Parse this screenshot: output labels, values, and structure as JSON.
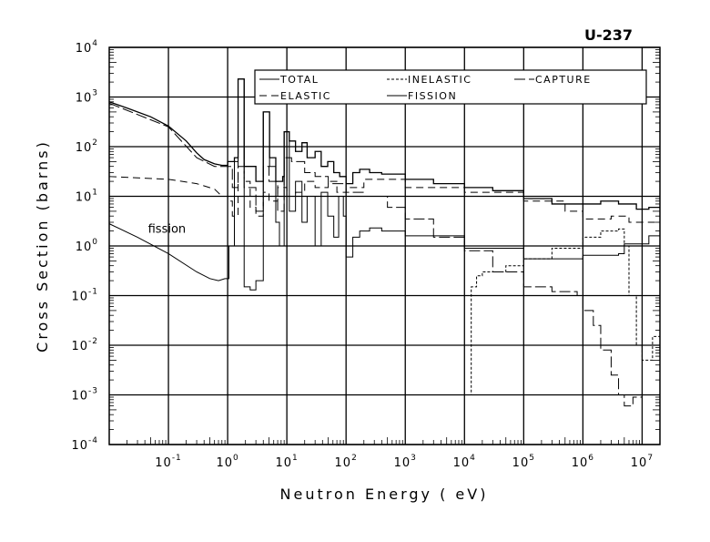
{
  "chart_data": {
    "type": "line",
    "title": "U-237",
    "xlabel": "Neutron Energy ( eV)",
    "ylabel": "Cross Section (barns)",
    "x_scale": "log",
    "y_scale": "log",
    "xlim": [
      0.01,
      20000000
    ],
    "ylim": [
      0.0001,
      10000
    ],
    "grid": true,
    "legend_position": "top-right",
    "x_ticks": [
      {
        "base": "10",
        "exp": "-1",
        "v": 0.1
      },
      {
        "base": "10",
        "exp": "0",
        "v": 1
      },
      {
        "base": "10",
        "exp": "1",
        "v": 10
      },
      {
        "base": "10",
        "exp": "2",
        "v": 100
      },
      {
        "base": "10",
        "exp": "3",
        "v": 1000
      },
      {
        "base": "10",
        "exp": "4",
        "v": 10000
      },
      {
        "base": "10",
        "exp": "5",
        "v": 100000
      },
      {
        "base": "10",
        "exp": "6",
        "v": 1000000
      },
      {
        "base": "10",
        "exp": "7",
        "v": 10000000
      }
    ],
    "y_ticks": [
      {
        "base": "10",
        "exp": "4",
        "v": 10000
      },
      {
        "base": "10",
        "exp": "3",
        "v": 1000
      },
      {
        "base": "10",
        "exp": "2",
        "v": 100
      },
      {
        "base": "10",
        "exp": "1",
        "v": 10
      },
      {
        "base": "10",
        "exp": "0",
        "v": 1
      },
      {
        "base": "10",
        "exp": "-1",
        "v": 0.1
      },
      {
        "base": "10",
        "exp": "-2",
        "v": 0.01
      },
      {
        "base": "10",
        "exp": "-3",
        "v": 0.001
      },
      {
        "base": "10",
        "exp": "-4",
        "v": 0.0001
      }
    ],
    "annotations": [
      {
        "text": "fission",
        "x": 0.06,
        "y": 1.5
      }
    ],
    "series": [
      {
        "name": "TOTAL",
        "style": "solid",
        "points": [
          [
            0.01,
            800
          ],
          [
            0.02,
            600
          ],
          [
            0.05,
            400
          ],
          [
            0.1,
            260
          ],
          [
            0.2,
            130
          ],
          [
            0.3,
            75
          ],
          [
            0.4,
            55
          ],
          [
            0.6,
            45
          ],
          [
            0.8,
            42
          ],
          [
            1.0,
            50
          ],
          [
            1.3,
            60
          ],
          [
            1.5,
            2300
          ],
          [
            1.9,
            40
          ],
          [
            3.0,
            20
          ],
          [
            4.0,
            500
          ],
          [
            5.1,
            60
          ],
          [
            6.5,
            20
          ],
          [
            8.5,
            25
          ],
          [
            9,
            200
          ],
          [
            11,
            130
          ],
          [
            14,
            80
          ],
          [
            18,
            120
          ],
          [
            22,
            60
          ],
          [
            30,
            80
          ],
          [
            38,
            40
          ],
          [
            49,
            50
          ],
          [
            62,
            30
          ],
          [
            78,
            25
          ],
          [
            100,
            18
          ],
          [
            130,
            30
          ],
          [
            170,
            35
          ],
          [
            250,
            30
          ],
          [
            400,
            28
          ],
          [
            1000,
            22
          ],
          [
            3000,
            18
          ],
          [
            10000,
            15
          ],
          [
            30000,
            13
          ],
          [
            100000,
            9
          ],
          [
            300000,
            7
          ],
          [
            1000000,
            7
          ],
          [
            2000000,
            8
          ],
          [
            4000000,
            7
          ],
          [
            8000000,
            5.5
          ],
          [
            13000000,
            6
          ],
          [
            20000000,
            6
          ]
        ]
      },
      {
        "name": "INELASTIC",
        "style": "dotted",
        "points": [
          [
            12000,
            0.001
          ],
          [
            13000,
            0.15
          ],
          [
            16000,
            0.25
          ],
          [
            20000,
            0.3
          ],
          [
            50000,
            0.4
          ],
          [
            100000,
            0.55
          ],
          [
            300000,
            0.9
          ],
          [
            1000000,
            1.5
          ],
          [
            2000000,
            2
          ],
          [
            4000000,
            2.2
          ],
          [
            5000000,
            1
          ],
          [
            6000000,
            0.1
          ],
          [
            8000000,
            0.01
          ],
          [
            10000000,
            0.005
          ],
          [
            15000000,
            0.015
          ],
          [
            20000000,
            0.01
          ]
        ]
      },
      {
        "name": "CAPTURE",
        "style": "longdash",
        "points": [
          [
            0.01,
            750
          ],
          [
            0.1,
            250
          ],
          [
            0.3,
            60
          ],
          [
            0.6,
            40
          ],
          [
            0.9,
            40
          ],
          [
            1.2,
            15
          ],
          [
            1.5,
            100
          ],
          [
            1.9,
            15
          ],
          [
            3,
            5
          ],
          [
            4,
            40
          ],
          [
            5,
            20
          ],
          [
            7,
            5
          ],
          [
            9,
            60
          ],
          [
            12,
            50
          ],
          [
            20,
            30
          ],
          [
            30,
            25
          ],
          [
            50,
            18
          ],
          [
            100,
            12
          ],
          [
            200,
            10
          ],
          [
            500,
            6
          ],
          [
            1000,
            3.5
          ],
          [
            3000,
            1.5
          ],
          [
            10000,
            0.8
          ],
          [
            30000,
            0.3
          ],
          [
            100000,
            0.15
          ],
          [
            300000,
            0.12
          ],
          [
            800000,
            0.1
          ],
          [
            1000000,
            0.05
          ],
          [
            1500000,
            0.025
          ],
          [
            2000000,
            0.008
          ],
          [
            3000000,
            0.0025
          ],
          [
            4000000,
            0.001
          ],
          [
            5000000,
            0.0006
          ],
          [
            7000000,
            0.0009
          ],
          [
            10000000,
            0.001
          ],
          [
            20000000,
            0.001
          ]
        ]
      },
      {
        "name": "ELASTIC",
        "style": "dashed",
        "points": [
          [
            0.01,
            25
          ],
          [
            0.1,
            22
          ],
          [
            0.3,
            18
          ],
          [
            0.6,
            14
          ],
          [
            0.8,
            10
          ],
          [
            1,
            8
          ],
          [
            1.2,
            4
          ],
          [
            1.5,
            40
          ],
          [
            1.9,
            20
          ],
          [
            2.4,
            6
          ],
          [
            3,
            4
          ],
          [
            4,
            12
          ],
          [
            5,
            8
          ],
          [
            7,
            15
          ],
          [
            10,
            10
          ],
          [
            14,
            12
          ],
          [
            20,
            20
          ],
          [
            30,
            15
          ],
          [
            50,
            20
          ],
          [
            70,
            12
          ],
          [
            100,
            15
          ],
          [
            200,
            22
          ],
          [
            1000,
            15
          ],
          [
            10000,
            12
          ],
          [
            100000,
            8
          ],
          [
            500000,
            5
          ],
          [
            1000000,
            3.5
          ],
          [
            3000000,
            4
          ],
          [
            6000000,
            3
          ],
          [
            10000000,
            3
          ],
          [
            20000000,
            3.5
          ]
        ]
      },
      {
        "name": "FISSION",
        "style": "solid",
        "points": [
          [
            0.01,
            2.8
          ],
          [
            0.03,
            1.5
          ],
          [
            0.1,
            0.7
          ],
          [
            0.3,
            0.3
          ],
          [
            0.5,
            0.22
          ],
          [
            0.7,
            0.2
          ],
          [
            0.9,
            0.22
          ],
          [
            1.05,
            1
          ],
          [
            1.3,
            50
          ],
          [
            1.5,
            2300
          ],
          [
            1.9,
            0.15
          ],
          [
            2.4,
            0.13
          ],
          [
            3.0,
            0.2
          ],
          [
            4.0,
            500
          ],
          [
            5.1,
            40
          ],
          [
            6.5,
            3
          ],
          [
            7.5,
            1
          ],
          [
            9,
            200
          ],
          [
            11,
            5
          ],
          [
            14,
            20
          ],
          [
            18,
            3
          ],
          [
            22,
            10
          ],
          [
            30,
            1
          ],
          [
            38,
            12
          ],
          [
            49,
            4
          ],
          [
            62,
            1.5
          ],
          [
            75,
            10
          ],
          [
            90,
            4
          ],
          [
            100,
            0.6
          ],
          [
            130,
            1.5
          ],
          [
            170,
            2
          ],
          [
            250,
            2.3
          ],
          [
            400,
            2
          ],
          [
            1000,
            1.6
          ],
          [
            10000,
            0.9
          ],
          [
            100000,
            0.55
          ],
          [
            1000000,
            0.65
          ],
          [
            4000000,
            0.7
          ],
          [
            5000000,
            1.1
          ],
          [
            10000000,
            1.1
          ],
          [
            13000000,
            1.6
          ],
          [
            20000000,
            1.7
          ]
        ]
      }
    ]
  }
}
